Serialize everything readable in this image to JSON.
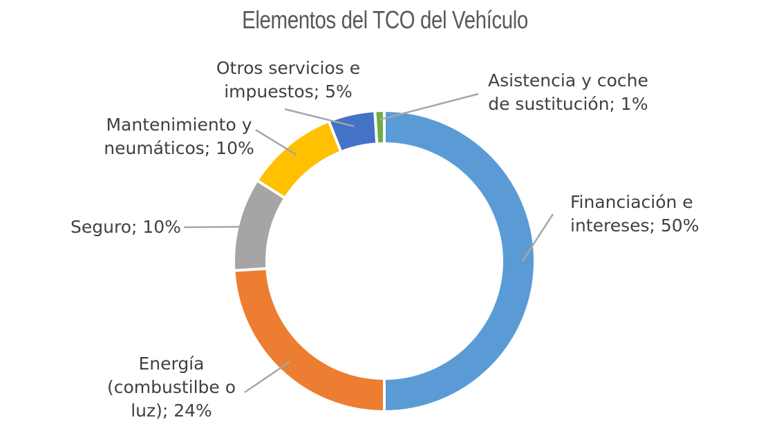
{
  "chart_data": {
    "type": "donut",
    "title": "Elementos del TCO del Vehículo",
    "slices": [
      {
        "name": "Financiación e intereses",
        "value": 50,
        "color": "#5B9BD5",
        "label_lines": [
          "Financiación e",
          "intereses; 50%"
        ]
      },
      {
        "name": "Energía (combustilbe o luz)",
        "value": 24,
        "color": "#ED7D31",
        "label_lines": [
          "Energía",
          "(combustilbe o",
          "luz); 24%"
        ]
      },
      {
        "name": "Seguro",
        "value": 10,
        "color": "#A5A5A5",
        "label_lines": [
          "Seguro; 10%"
        ]
      },
      {
        "name": "Mantenimiento y neumáticos",
        "value": 10,
        "color": "#FFC000",
        "label_lines": [
          "Mantenimiento y",
          "neumáticos; 10%"
        ]
      },
      {
        "name": "Otros servicios e impuestos",
        "value": 5,
        "color": "#4472C4",
        "label_lines": [
          "Otros servicios e",
          "impuestos; 5%"
        ]
      },
      {
        "name": "Asistencia y coche de sustitución",
        "value": 1,
        "color": "#70AD47",
        "label_lines": [
          "Asistencia y coche",
          "de sustitución; 1%"
        ]
      }
    ],
    "legend": "none",
    "data_labels": "outside with leader lines"
  }
}
